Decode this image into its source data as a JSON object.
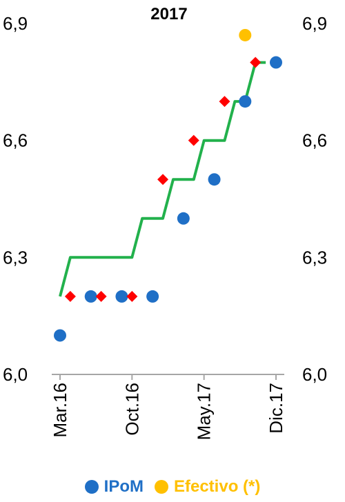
{
  "chart_data": {
    "type": "scatter",
    "title": "2017",
    "xlabel": "",
    "ylabel": "",
    "ylim": [
      6.0,
      6.9
    ],
    "yticks": [
      "6,0",
      "6,3",
      "6,6",
      "6,9"
    ],
    "xticks": [
      "Mar.16",
      "Oct.16",
      "May.17",
      "Dic.17"
    ],
    "x_range": [
      "2016-03",
      "2017-12"
    ],
    "legend_placement": "bottom",
    "series": [
      {
        "name": "IPoM",
        "kind": "markers",
        "marker": "circle",
        "color": "#1F6FC6",
        "points": [
          {
            "x": "2016-03",
            "y": 6.1
          },
          {
            "x": "2016-06",
            "y": 6.2
          },
          {
            "x": "2016-09",
            "y": 6.2
          },
          {
            "x": "2016-12",
            "y": 6.2
          },
          {
            "x": "2017-03",
            "y": 6.4
          },
          {
            "x": "2017-06",
            "y": 6.5
          },
          {
            "x": "2017-09",
            "y": 6.7
          },
          {
            "x": "2017-12",
            "y": 6.8
          }
        ]
      },
      {
        "name": "Efectivo (*)",
        "kind": "markers",
        "marker": "circle",
        "color": "#FFC000",
        "points": [
          {
            "x": "2017-09",
            "y": 6.87
          }
        ]
      },
      {
        "kind": "markers",
        "marker": "diamond",
        "color": "#FF0000",
        "points": [
          {
            "x": "2016-04",
            "y": 6.2
          },
          {
            "x": "2016-07",
            "y": 6.2
          },
          {
            "x": "2016-10",
            "y": 6.2
          },
          {
            "x": "2017-01",
            "y": 6.5
          },
          {
            "x": "2017-04",
            "y": 6.6
          },
          {
            "x": "2017-07",
            "y": 6.7
          },
          {
            "x": "2017-10",
            "y": 6.8
          }
        ]
      },
      {
        "kind": "step-line",
        "color": "#22B14C",
        "points": [
          {
            "x": "2016-03",
            "y": 6.2
          },
          {
            "x": "2016-04",
            "y": 6.3
          },
          {
            "x": "2016-10",
            "y": 6.3
          },
          {
            "x": "2016-11",
            "y": 6.4
          },
          {
            "x": "2017-01",
            "y": 6.4
          },
          {
            "x": "2017-02",
            "y": 6.5
          },
          {
            "x": "2017-04",
            "y": 6.5
          },
          {
            "x": "2017-05",
            "y": 6.6
          },
          {
            "x": "2017-07",
            "y": 6.6
          },
          {
            "x": "2017-08",
            "y": 6.7
          },
          {
            "x": "2017-09",
            "y": 6.7
          },
          {
            "x": "2017-10",
            "y": 6.8
          },
          {
            "x": "2017-11",
            "y": 6.8
          }
        ]
      }
    ]
  },
  "legend": {
    "items": [
      {
        "label": "IPoM",
        "color": "#1F6FC6"
      },
      {
        "label": "Efectivo (*)",
        "color": "#FFC000"
      }
    ]
  }
}
